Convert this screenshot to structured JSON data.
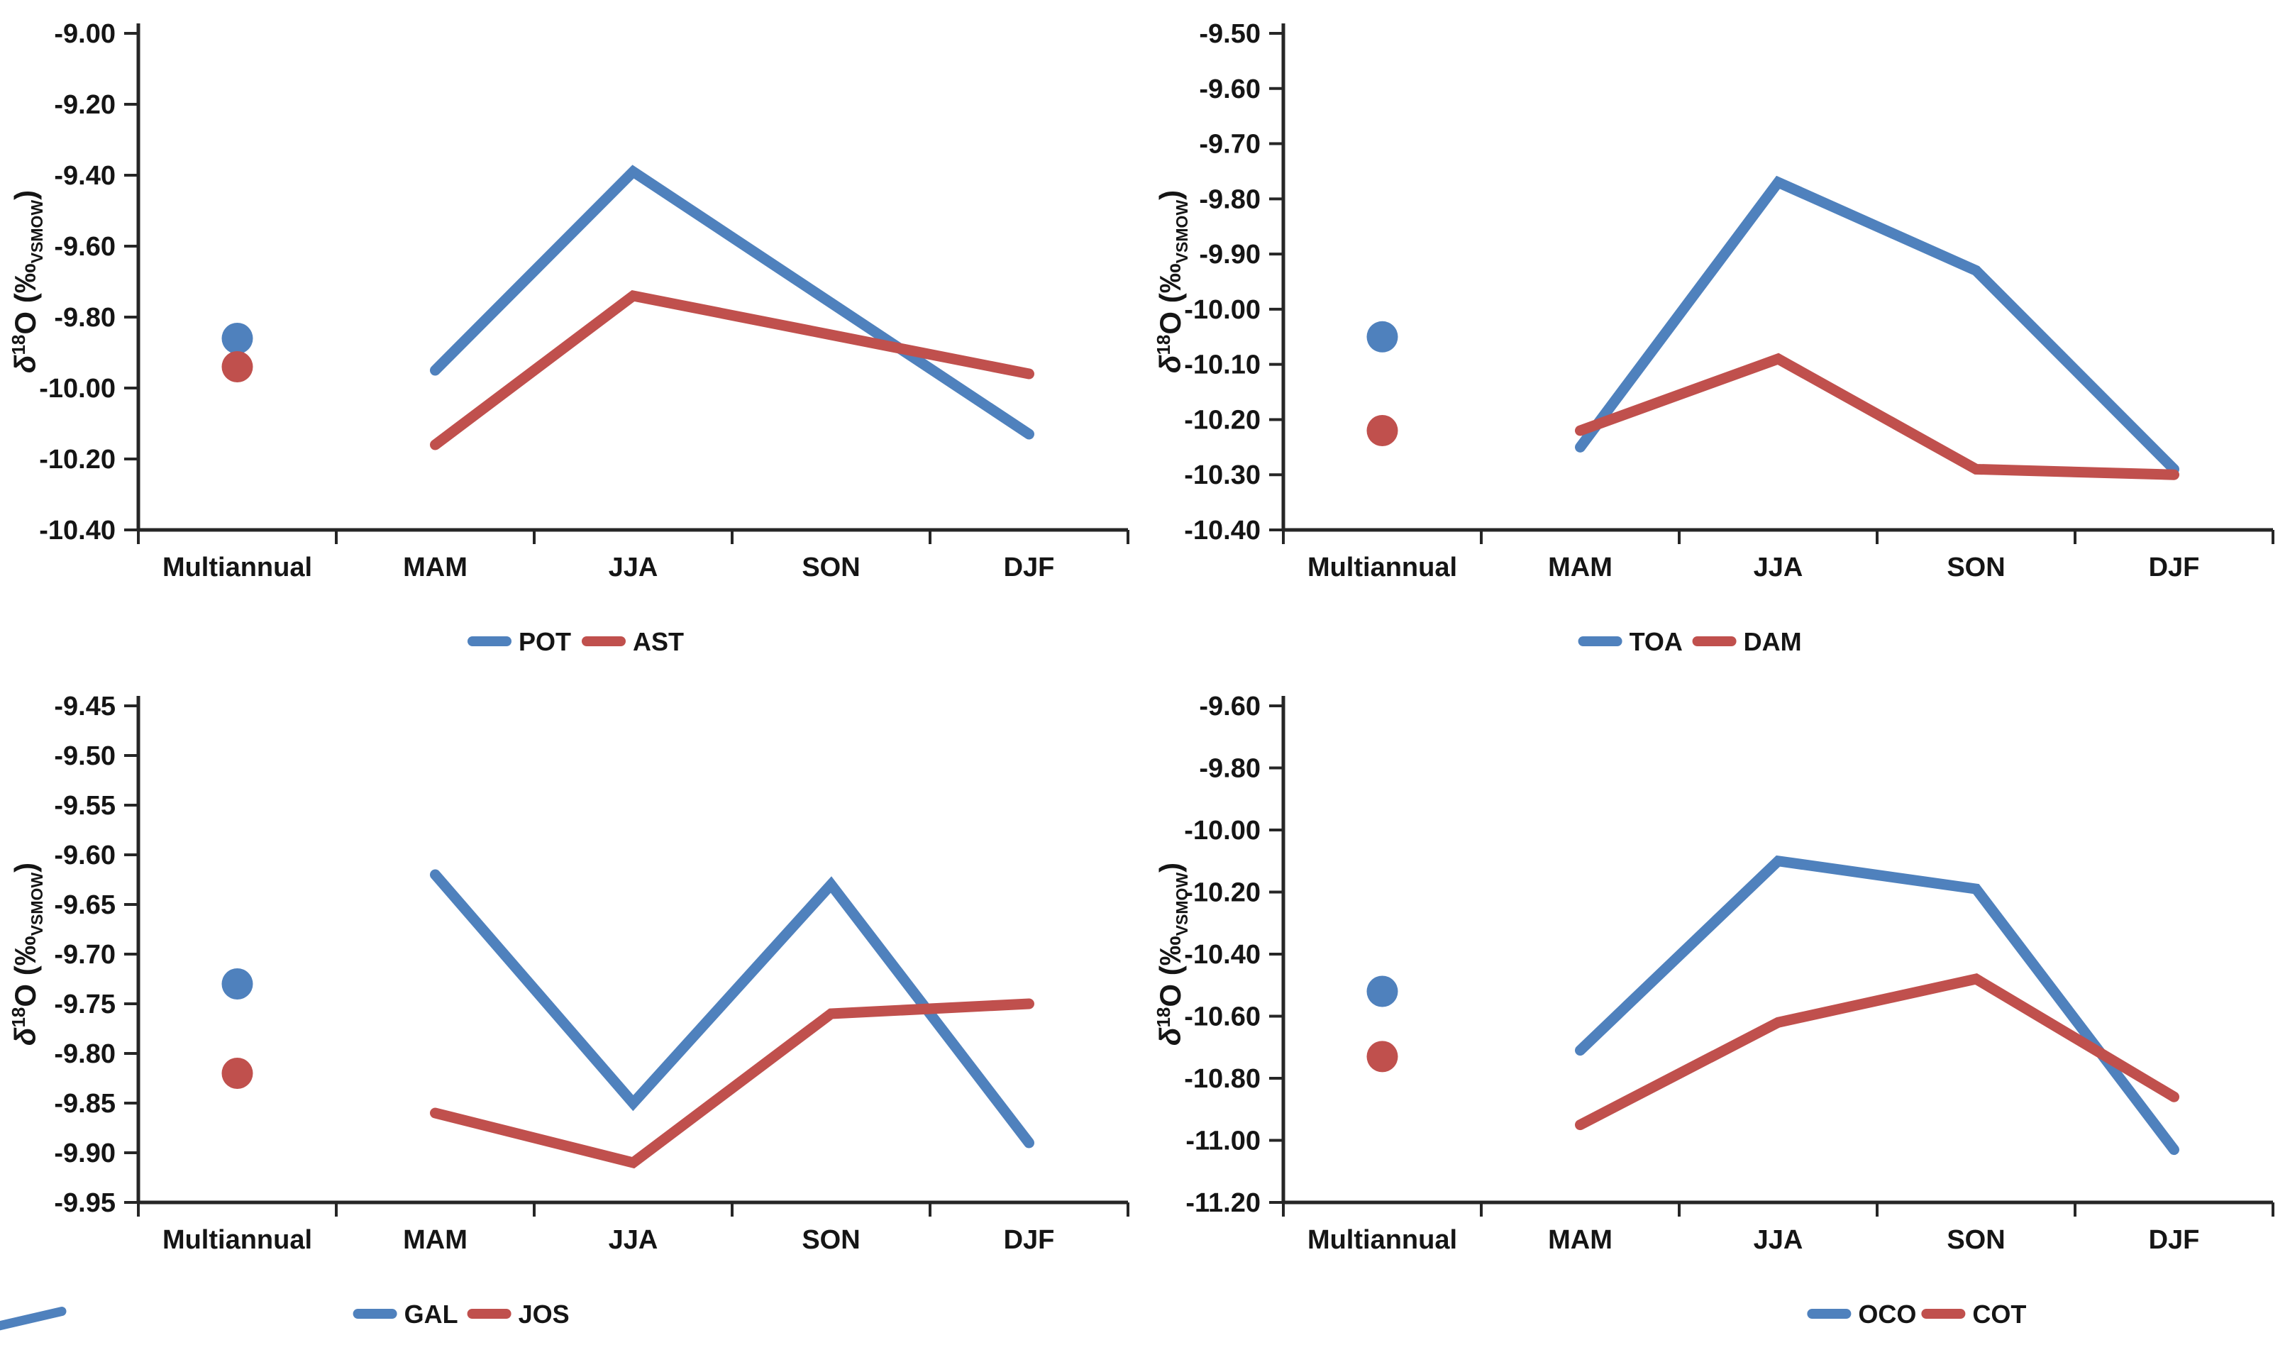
{
  "figure": {
    "background": "#ffffff",
    "layout": "2x2 grid of line charts",
    "colors": {
      "series_blue": "#4F81BD",
      "series_red": "#C0504D",
      "axis": "#262626",
      "text": "#151515"
    }
  },
  "axis_label_parts": {
    "delta": "δ",
    "isotope_sup": "18",
    "element": "O",
    "unit_prefix": " (‰",
    "unit_sub": "VSMOW",
    "unit_suffix": ")"
  },
  "categories": [
    "Multiannual",
    "MAM",
    "JJA",
    "SON",
    "DJF"
  ],
  "chart_data": [
    {
      "id": "pot-ast",
      "type": "line",
      "position": "top-left",
      "title": "",
      "xlabel": "",
      "ylabel": "δ18O (‰VSMOW)",
      "categories": [
        "Multiannual",
        "MAM",
        "JJA",
        "SON",
        "DJF"
      ],
      "marker_only_category": "Multiannual",
      "ylim": [
        -10.4,
        -9.0
      ],
      "ytick_step": 0.2,
      "ytick_labels": [
        "-9.00",
        "-9.20",
        "-9.40",
        "-9.60",
        "-9.80",
        "-10.00",
        "-10.20",
        "-10.40"
      ],
      "grid": false,
      "legend_position": "bottom-center",
      "legend_x_frac": 0.5,
      "series": [
        {
          "name": "POT",
          "color": "#4F81BD",
          "values": [
            -9.86,
            -9.95,
            -9.39,
            -9.76,
            -10.13
          ]
        },
        {
          "name": "AST",
          "color": "#C0504D",
          "values": [
            -9.94,
            -10.16,
            -9.74,
            -9.85,
            -9.96
          ]
        }
      ]
    },
    {
      "id": "toa-dam",
      "type": "line",
      "position": "top-right",
      "title": "",
      "xlabel": "",
      "ylabel": "δ18O (‰VSMOW)",
      "categories": [
        "Multiannual",
        "MAM",
        "JJA",
        "SON",
        "DJF"
      ],
      "marker_only_category": "Multiannual",
      "ylim": [
        -10.4,
        -9.5
      ],
      "ytick_step": 0.1,
      "ytick_labels": [
        "-9.50",
        "-9.60",
        "-9.70",
        "-9.80",
        "-9.90",
        "-10.00",
        "-10.10",
        "-10.20",
        "-10.30",
        "-10.40"
      ],
      "grid": false,
      "legend_position": "bottom-center",
      "legend_x_frac": 0.47,
      "series": [
        {
          "name": "TOA",
          "color": "#4F81BD",
          "values": [
            -10.05,
            -10.25,
            -9.77,
            -9.93,
            -10.29
          ]
        },
        {
          "name": "DAM",
          "color": "#C0504D",
          "values": [
            -10.22,
            -10.22,
            -10.09,
            -10.29,
            -10.3
          ]
        }
      ]
    },
    {
      "id": "gal-jos",
      "type": "line",
      "position": "bottom-left",
      "title": "",
      "xlabel": "",
      "ylabel": "δ18O (‰VSMOW)",
      "categories": [
        "Multiannual",
        "MAM",
        "JJA",
        "SON",
        "DJF"
      ],
      "marker_only_category": "Multiannual",
      "ylim": [
        -9.95,
        -9.45
      ],
      "ytick_step": 0.05,
      "ytick_labels": [
        "-9.45",
        "-9.50",
        "-9.55",
        "-9.60",
        "-9.65",
        "-9.70",
        "-9.75",
        "-9.80",
        "-9.85",
        "-9.90",
        "-9.95"
      ],
      "grid": false,
      "legend_position": "bottom-center",
      "legend_x_frac": 0.4,
      "series": [
        {
          "name": "GAL",
          "color": "#4F81BD",
          "values": [
            -9.73,
            -9.62,
            -9.85,
            -9.63,
            -9.89
          ]
        },
        {
          "name": "JOS",
          "color": "#C0504D",
          "values": [
            -9.82,
            -9.86,
            -9.91,
            -9.76,
            -9.75
          ]
        }
      ]
    },
    {
      "id": "oco-cot",
      "type": "line",
      "position": "bottom-right",
      "title": "",
      "xlabel": "",
      "ylabel": "δ18O (‰VSMOW)",
      "categories": [
        "Multiannual",
        "MAM",
        "JJA",
        "SON",
        "DJF"
      ],
      "marker_only_category": "Multiannual",
      "ylim": [
        -11.2,
        -9.6
      ],
      "ytick_step": 0.2,
      "ytick_labels": [
        "-9.60",
        "-9.80",
        "-10.00",
        "-10.20",
        "-10.40",
        "-10.60",
        "-10.80",
        "-11.00",
        "-11.20"
      ],
      "grid": false,
      "legend_position": "bottom-center",
      "legend_x_frac": 0.67,
      "series": [
        {
          "name": "OCO",
          "color": "#4F81BD",
          "values": [
            -10.52,
            -10.71,
            -10.1,
            -10.19,
            -11.03
          ]
        },
        {
          "name": "COT",
          "color": "#C0504D",
          "values": [
            -10.73,
            -10.95,
            -10.62,
            -10.48,
            -10.86
          ]
        }
      ]
    }
  ]
}
